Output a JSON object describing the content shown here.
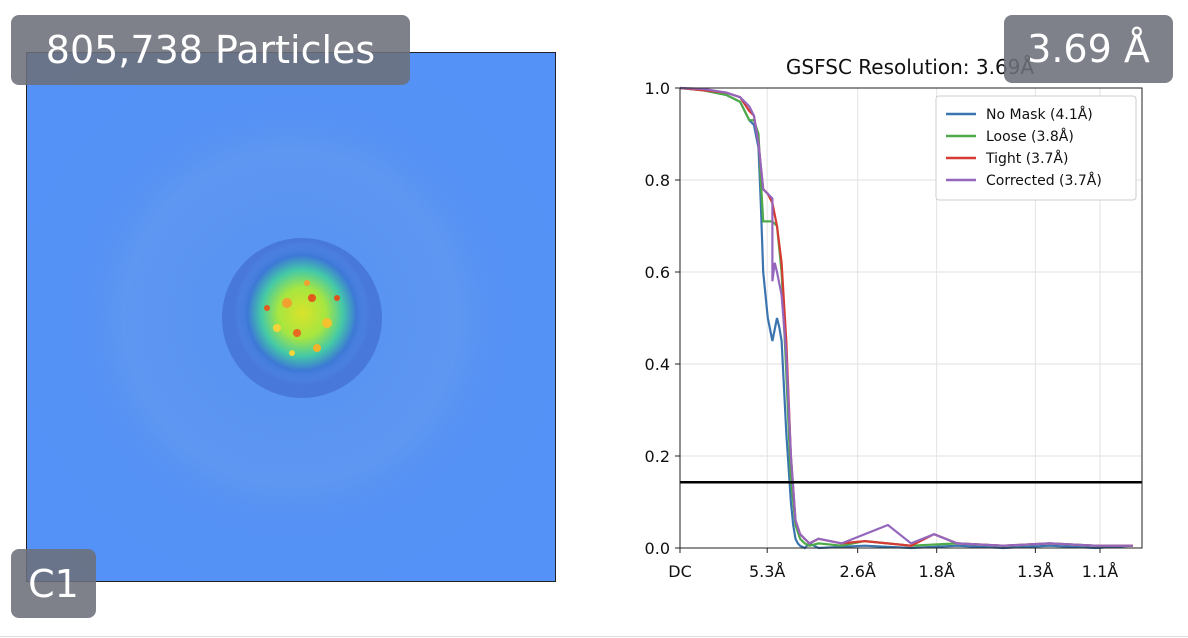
{
  "overlay": {
    "particles_label": "805,738 Particles",
    "resolution_label": "3.69 Å",
    "symmetry_label": "C1"
  },
  "map_panel": {
    "colormap": "turbo",
    "background_color": "#5592f6"
  },
  "chart_data": {
    "type": "line",
    "title": "GSFSC Resolution: 3.69Å",
    "xlabel": "",
    "ylabel": "",
    "ylim": [
      0,
      1.0
    ],
    "xlim": [
      0,
      1
    ],
    "grid": true,
    "legend_position": "top-right",
    "x_ticks": [
      {
        "x": 0.0,
        "label": "DC"
      },
      {
        "x": 0.1887,
        "label": "5.3Å"
      },
      {
        "x": 0.3846,
        "label": "2.6Å"
      },
      {
        "x": 0.5556,
        "label": "1.8Å"
      },
      {
        "x": 0.7692,
        "label": "1.3Å"
      },
      {
        "x": 0.9091,
        "label": "1.1Å"
      }
    ],
    "y_ticks": [
      {
        "y": 0.0,
        "label": "0.0"
      },
      {
        "y": 0.2,
        "label": "0.2"
      },
      {
        "y": 0.4,
        "label": "0.4"
      },
      {
        "y": 0.6,
        "label": "0.6"
      },
      {
        "y": 0.8,
        "label": "0.8"
      },
      {
        "y": 1.0,
        "label": "1.0"
      }
    ],
    "threshold": 0.143,
    "series": [
      {
        "name": "No Mask (4.1Å)",
        "color": "#3b75af",
        "x": [
          0.0,
          0.05,
          0.1,
          0.13,
          0.15,
          0.16,
          0.17,
          0.175,
          0.18,
          0.19,
          0.2,
          0.21,
          0.215,
          0.22,
          0.23,
          0.24,
          0.245,
          0.25,
          0.255,
          0.26,
          0.27,
          0.28,
          0.3,
          0.4,
          0.5,
          0.6,
          0.7,
          0.8,
          0.9,
          0.98
        ],
        "y": [
          1.0,
          0.995,
          0.985,
          0.97,
          0.93,
          0.92,
          0.87,
          0.75,
          0.6,
          0.5,
          0.45,
          0.5,
          0.48,
          0.45,
          0.25,
          0.1,
          0.05,
          0.02,
          0.01,
          0.005,
          0.0,
          0.01,
          0.0,
          0.005,
          0.0,
          0.005,
          0.0,
          0.005,
          0.0,
          0.005
        ]
      },
      {
        "name": "Loose (3.8Å)",
        "color": "#4daa47",
        "x": [
          0.0,
          0.05,
          0.1,
          0.13,
          0.15,
          0.16,
          0.17,
          0.175,
          0.18,
          0.2,
          0.21,
          0.22,
          0.23,
          0.24,
          0.25,
          0.26,
          0.27,
          0.28,
          0.3,
          0.35,
          0.4,
          0.5,
          0.6,
          0.7,
          0.8,
          0.9,
          0.98
        ],
        "y": [
          1.0,
          0.995,
          0.985,
          0.97,
          0.93,
          0.93,
          0.9,
          0.8,
          0.71,
          0.71,
          0.7,
          0.6,
          0.38,
          0.15,
          0.05,
          0.02,
          0.01,
          0.005,
          0.01,
          0.005,
          0.015,
          0.005,
          0.01,
          0.005,
          0.01,
          0.005,
          0.005
        ]
      },
      {
        "name": "Tight (3.7Å)",
        "color": "#d63a34",
        "x": [
          0.0,
          0.05,
          0.1,
          0.13,
          0.15,
          0.16,
          0.17,
          0.18,
          0.19,
          0.2,
          0.21,
          0.22,
          0.23,
          0.24,
          0.25,
          0.26,
          0.27,
          0.28,
          0.3,
          0.35,
          0.4,
          0.5,
          0.55,
          0.6,
          0.7,
          0.8,
          0.9,
          0.98
        ],
        "y": [
          1.0,
          0.995,
          0.99,
          0.98,
          0.95,
          0.94,
          0.88,
          0.78,
          0.77,
          0.75,
          0.7,
          0.62,
          0.45,
          0.2,
          0.06,
          0.03,
          0.02,
          0.01,
          0.02,
          0.01,
          0.015,
          0.005,
          0.03,
          0.01,
          0.005,
          0.01,
          0.005,
          0.005
        ]
      },
      {
        "name": "Corrected (3.7Å)",
        "color": "#9467bd",
        "x": [
          0.0,
          0.05,
          0.1,
          0.13,
          0.15,
          0.16,
          0.17,
          0.18,
          0.2,
          0.2,
          0.205,
          0.21,
          0.22,
          0.23,
          0.24,
          0.25,
          0.26,
          0.27,
          0.28,
          0.3,
          0.35,
          0.45,
          0.5,
          0.55,
          0.6,
          0.7,
          0.8,
          0.9,
          0.98
        ],
        "y": [
          1.0,
          0.998,
          0.99,
          0.98,
          0.96,
          0.94,
          0.88,
          0.78,
          0.76,
          0.58,
          0.62,
          0.6,
          0.55,
          0.42,
          0.2,
          0.06,
          0.03,
          0.02,
          0.01,
          0.02,
          0.01,
          0.05,
          0.01,
          0.03,
          0.01,
          0.005,
          0.01,
          0.005,
          0.005
        ]
      },
      {
        "name": "",
        "color": "#000000",
        "x": [
          0.0,
          1.0
        ],
        "y": [
          0.143,
          0.143
        ]
      }
    ]
  }
}
